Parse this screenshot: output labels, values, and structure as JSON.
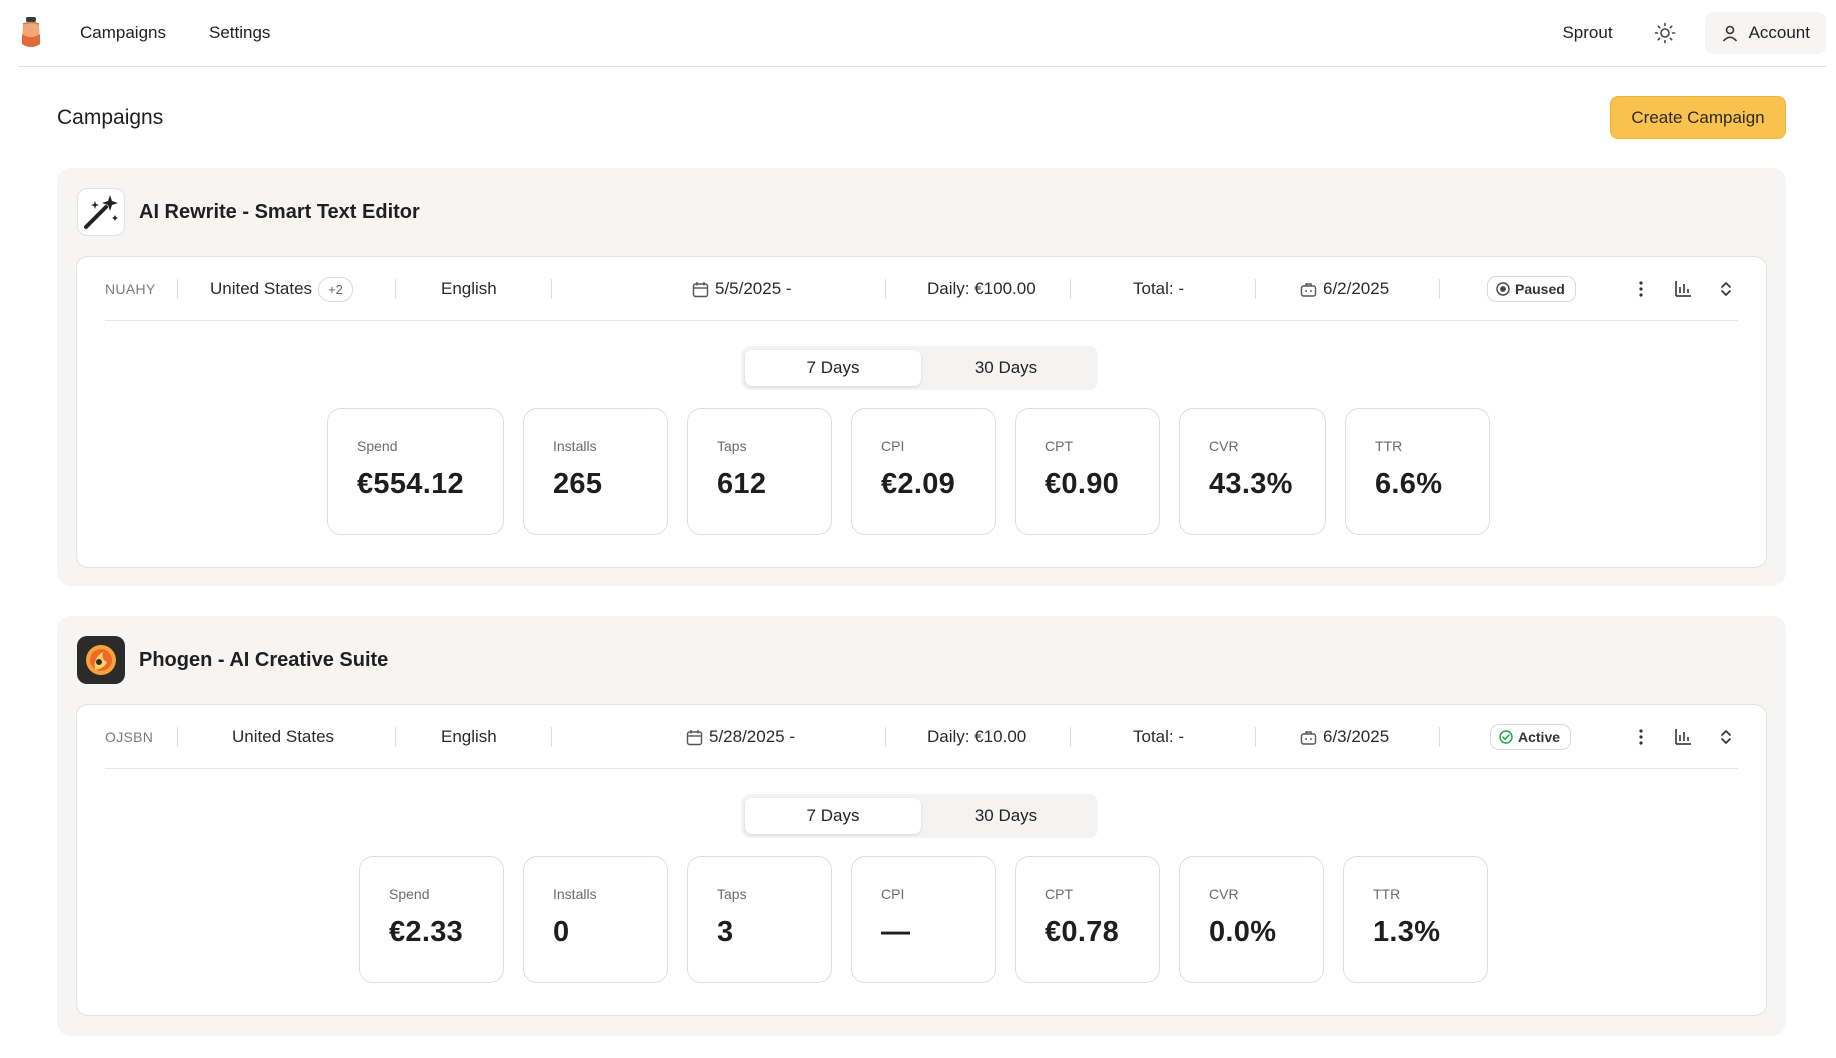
{
  "nav": {
    "links": [
      "Campaigns",
      "Settings"
    ],
    "org_name": "Sprout",
    "account_label": "Account"
  },
  "page": {
    "title": "Campaigns",
    "create_button": "Create Campaign"
  },
  "campaigns": [
    {
      "app_name": "AI Rewrite - Smart Text Editor",
      "code": "NUAHY",
      "country": "United States",
      "extra_countries": "+2",
      "language": "English",
      "start_date": "5/5/2025 -",
      "daily": "Daily: €100.00",
      "total": "Total: -",
      "end_date": "6/2/2025",
      "status": "Paused",
      "range_7": "7 Days",
      "range_30": "30 Days",
      "stats": [
        {
          "label": "Spend",
          "value": "€554.12"
        },
        {
          "label": "Installs",
          "value": "265"
        },
        {
          "label": "Taps",
          "value": "612"
        },
        {
          "label": "CPI",
          "value": "€2.09"
        },
        {
          "label": "CPT",
          "value": "€0.90"
        },
        {
          "label": "CVR",
          "value": "43.3%"
        },
        {
          "label": "TTR",
          "value": "6.6%"
        }
      ]
    },
    {
      "app_name": "Phogen - AI Creative Suite",
      "code": "OJSBN",
      "country": "United States",
      "language": "English",
      "start_date": "5/28/2025 -",
      "daily": "Daily: €10.00",
      "total": "Total: -",
      "end_date": "6/3/2025",
      "status": "Active",
      "range_7": "7 Days",
      "range_30": "30 Days",
      "stats": [
        {
          "label": "Spend",
          "value": "€2.33"
        },
        {
          "label": "Installs",
          "value": "0"
        },
        {
          "label": "Taps",
          "value": "3"
        },
        {
          "label": "CPI",
          "value": "—"
        },
        {
          "label": "CPT",
          "value": "€0.78"
        },
        {
          "label": "CVR",
          "value": "0.0%"
        },
        {
          "label": "TTR",
          "value": "1.3%"
        }
      ]
    }
  ],
  "colors": {
    "accent": "#f9c14e",
    "panel_bg": "#f6f5f3",
    "active_green": "#22a447"
  }
}
